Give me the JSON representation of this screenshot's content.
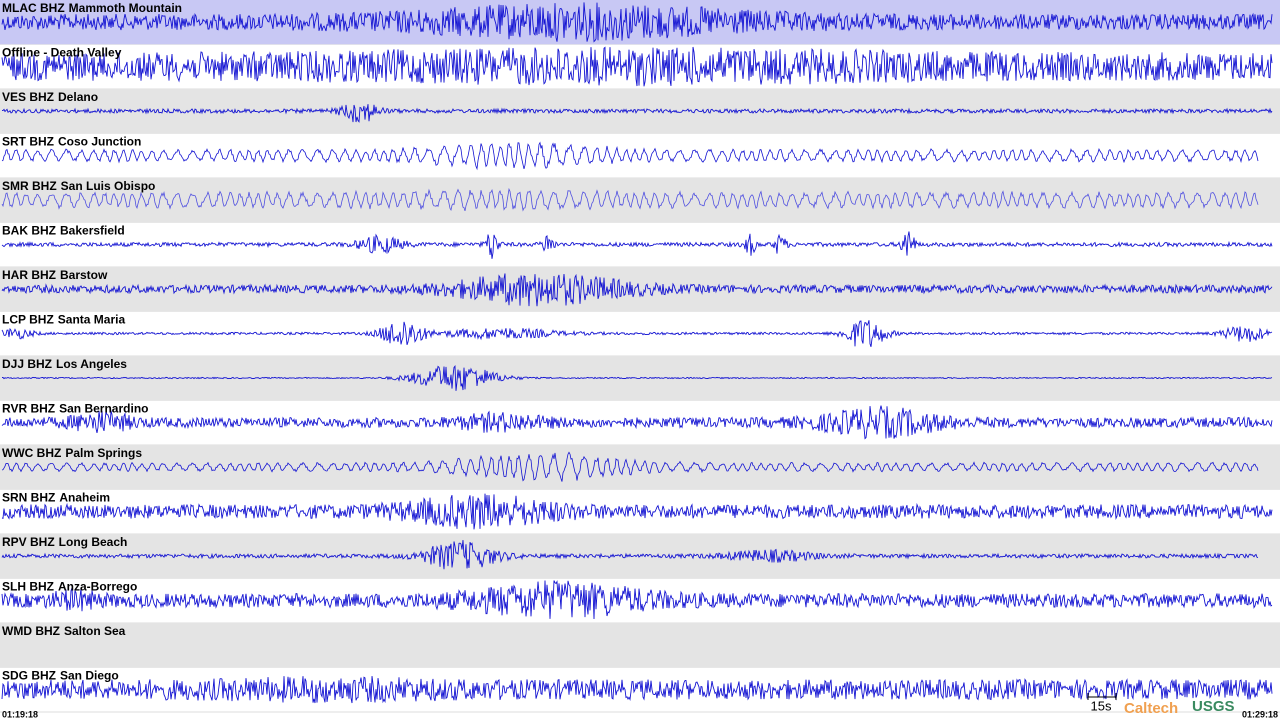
{
  "stations": [
    {
      "code": "MLAC BHZ",
      "name": "Mammoth Mountain"
    },
    {
      "name": "Offline - Death Valley"
    },
    {
      "code": "VES BHZ",
      "name": "Delano"
    },
    {
      "code": "SRT BHZ",
      "name": "Coso Junction"
    },
    {
      "code": "SMR BHZ",
      "name": "San Luis Obispo"
    },
    {
      "code": "BAK BHZ",
      "name": "Bakersfield"
    },
    {
      "code": "HAR BHZ",
      "name": "Barstow"
    },
    {
      "code": "LCP BHZ",
      "name": "Santa Maria"
    },
    {
      "code": "DJJ BHZ",
      "name": "Los Angeles"
    },
    {
      "code": "RVR BHZ",
      "name": "San Bernardino"
    },
    {
      "code": "WWC BHZ",
      "name": "Palm Springs"
    },
    {
      "code": "SRN BHZ",
      "name": "Anaheim"
    },
    {
      "code": "RPV BHZ",
      "name": "Long Beach"
    },
    {
      "code": "SLH BHZ",
      "name": "Anza-Borrego"
    },
    {
      "code": "WMD BHZ",
      "name": "Salton Sea"
    },
    {
      "code": "SDG BHZ",
      "name": "San Diego"
    }
  ],
  "time": {
    "start": "01:19:18",
    "end": "01:29:18"
  },
  "scale_bar": "15s",
  "logos": {
    "caltech": "Caltech",
    "usgs": "USGS"
  }
}
